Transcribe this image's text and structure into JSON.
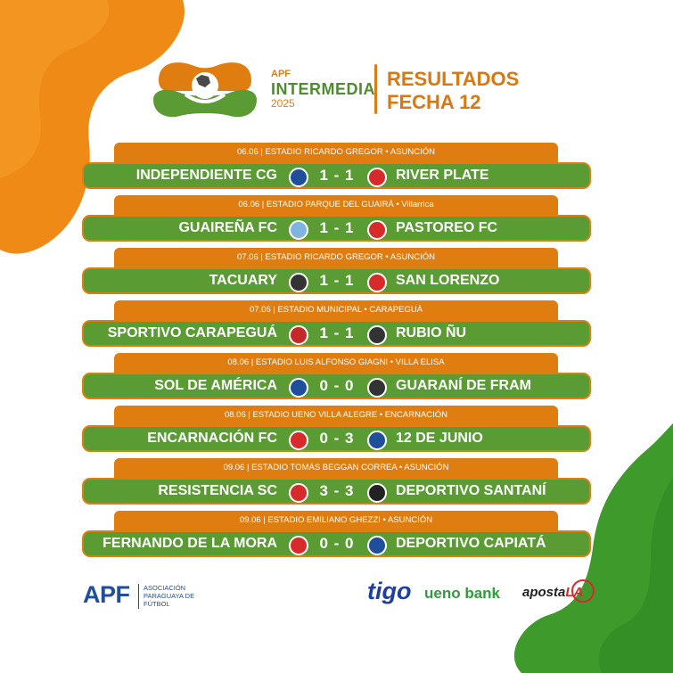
{
  "colors": {
    "orange": "#e07d10",
    "green": "#5a9b34",
    "apf_blue": "#1f4e9a"
  },
  "header": {
    "brand_line1": "APF",
    "brand_line2": "INTERMEDIA",
    "brand_line3": "2025",
    "title_line1": "RESULTADOS",
    "title_line2": "FECHA 12"
  },
  "matches": [
    {
      "info": "06.06 | ESTADIO RICARDO GREGOR • ASUNCIÓN",
      "home": "INDEPENDIENTE CG",
      "score": "1 - 1",
      "away": "RIVER PLATE",
      "home_crest": "independiente-cg-crest",
      "away_crest": "river-plate-crest"
    },
    {
      "info": "06.06 | ESTADIO PARQUE DEL GUAIRÁ • Villarrica",
      "home": "GUAIREÑA FC",
      "score": "1 - 1",
      "away": "PASTOREO FC",
      "home_crest": "guairena-fc-crest",
      "away_crest": "pastoreo-fc-crest"
    },
    {
      "info": "07.06 | ESTADIO RICARDO GREGOR • ASUNCIÓN",
      "home": "TACUARY",
      "score": "1 - 1",
      "away": "SAN LORENZO",
      "home_crest": "tacuary-crest",
      "away_crest": "san-lorenzo-crest"
    },
    {
      "info": "07.06 | ESTADIO MUNICIPAL • CARAPEGUÁ",
      "home": "SPORTIVO CARAPEGUÁ",
      "score": "1 - 1",
      "away": "RUBIO ÑU",
      "home_crest": "sportivo-carapegua-crest",
      "away_crest": "rubio-nu-crest"
    },
    {
      "info": "08.06 | ESTADIO LUIS ALFONSO GIAGNI • VILLA ELISA",
      "home": "SOL DE AMÉRICA",
      "score": "0 - 0",
      "away": "GUARANÍ DE FRAM",
      "home_crest": "sol-de-america-crest",
      "away_crest": "guarani-de-fram-crest"
    },
    {
      "info": "08.06 | ESTADIO UENO VILLA ALEGRE • ENCARNACIÓN",
      "home": "ENCARNACIÓN FC",
      "score": "0 - 3",
      "away": "12 DE JUNIO",
      "home_crest": "encarnacion-fc-crest",
      "away_crest": "12-de-junio-crest"
    },
    {
      "info": "09.06 | ESTADIO TOMÁS BEGGAN CORREA • ASUNCIÓN",
      "home": "RESISTENCIA SC",
      "score": "3 - 3",
      "away": "DEPORTIVO SANTANÍ",
      "home_crest": "resistencia-sc-crest",
      "away_crest": "deportivo-santani-crest"
    },
    {
      "info": "09.06 | ESTADIO EMILIANO GHEZZI • ASUNCIÓN",
      "home": "FERNANDO DE LA MORA",
      "score": "0 - 0",
      "away": "DEPORTIVO CAPIATÁ",
      "home_crest": "fernando-de-la-mora-crest",
      "away_crest": "deportivo-capiata-crest"
    }
  ],
  "footer": {
    "apf_logo": "APF",
    "apf_subtitle": "ASOCIACIÓN PARAGUAYA DE FÚTBOL",
    "sponsor1": "tigo",
    "sponsor2": "ueno bank",
    "sponsor3": "aposta",
    "sponsor3_badge": "LA"
  }
}
